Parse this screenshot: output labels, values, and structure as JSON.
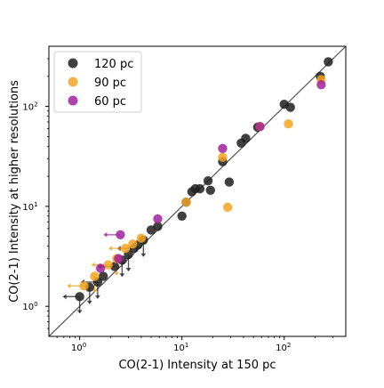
{
  "chart_data": {
    "type": "scatter",
    "xlabel": "CO(2-1) Intensity at 150 pc",
    "ylabel": "CO(2-1) Intensity at higher resolutions",
    "xscale": "log",
    "yscale": "log",
    "xlim": [
      0.5,
      400
    ],
    "ylim": [
      0.5,
      400
    ],
    "x_ticks": [
      {
        "value": 1,
        "base": "10",
        "exp": "0"
      },
      {
        "value": 10,
        "base": "10",
        "exp": "1"
      },
      {
        "value": 100,
        "base": "10",
        "exp": "2"
      }
    ],
    "y_ticks": [
      {
        "value": 1,
        "base": "10",
        "exp": "0"
      },
      {
        "value": 10,
        "base": "10",
        "exp": "1"
      },
      {
        "value": 100,
        "base": "10",
        "exp": "2"
      }
    ],
    "reference_line": "one-to-one",
    "grid": false,
    "legend_position": "top-left",
    "series": [
      {
        "name": "120 pc",
        "color": "#1f1f1f",
        "points": [
          [
            1.0,
            1.25
          ],
          [
            1.25,
            1.55
          ],
          [
            1.5,
            1.75
          ],
          [
            1.7,
            2.0
          ],
          [
            2.2,
            2.5
          ],
          [
            2.6,
            2.9
          ],
          [
            3.0,
            3.3
          ],
          [
            3.4,
            3.8
          ],
          [
            3.7,
            4.1
          ],
          [
            4.2,
            4.6
          ],
          [
            5.0,
            5.8
          ],
          [
            5.8,
            6.3
          ],
          [
            10,
            8.0
          ],
          [
            11,
            11
          ],
          [
            12.5,
            14
          ],
          [
            13.5,
            15
          ],
          [
            15,
            15
          ],
          [
            18,
            18
          ],
          [
            19,
            14.5
          ],
          [
            25,
            28
          ],
          [
            29,
            17.5
          ],
          [
            38,
            43
          ],
          [
            42,
            48
          ],
          [
            55,
            62
          ],
          [
            100,
            105
          ],
          [
            115,
            98
          ],
          [
            225,
            200
          ],
          [
            270,
            280
          ]
        ],
        "upper_limits": [
          [
            1.0,
            1.25
          ],
          [
            1.25,
            1.55
          ],
          [
            1.5,
            1.75
          ],
          [
            2.6,
            2.9
          ],
          [
            3.0,
            3.3
          ],
          [
            4.2,
            4.6
          ]
        ],
        "left_limits": [
          [
            1.0,
            1.25
          ],
          [
            1.5,
            1.75
          ],
          [
            2.2,
            2.5
          ],
          [
            3.4,
            3.8
          ]
        ]
      },
      {
        "name": "90 pc",
        "color": "#f5a623",
        "points": [
          [
            1.1,
            1.6
          ],
          [
            1.4,
            2.0
          ],
          [
            1.9,
            2.6
          ],
          [
            2.3,
            3.0
          ],
          [
            2.8,
            3.8
          ],
          [
            3.3,
            4.2
          ],
          [
            4.0,
            4.8
          ],
          [
            11,
            11
          ],
          [
            25,
            31
          ],
          [
            28,
            9.8
          ],
          [
            58,
            63
          ],
          [
            110,
            67
          ],
          [
            230,
            185
          ]
        ],
        "upper_limits": [
          [
            1.4,
            2.0
          ],
          [
            2.3,
            3.0
          ]
        ],
        "left_limits": [
          [
            1.1,
            1.6
          ],
          [
            1.9,
            2.6
          ],
          [
            2.8,
            3.8
          ]
        ]
      },
      {
        "name": "60 pc",
        "color": "#a0239c",
        "points": [
          [
            1.6,
            2.4
          ],
          [
            2.4,
            3.0
          ],
          [
            2.5,
            5.2
          ],
          [
            5.8,
            7.5
          ],
          [
            25,
            38
          ],
          [
            58,
            63
          ],
          [
            230,
            165
          ]
        ],
        "upper_limits": [],
        "left_limits": [
          [
            2.5,
            5.2
          ]
        ]
      }
    ]
  }
}
